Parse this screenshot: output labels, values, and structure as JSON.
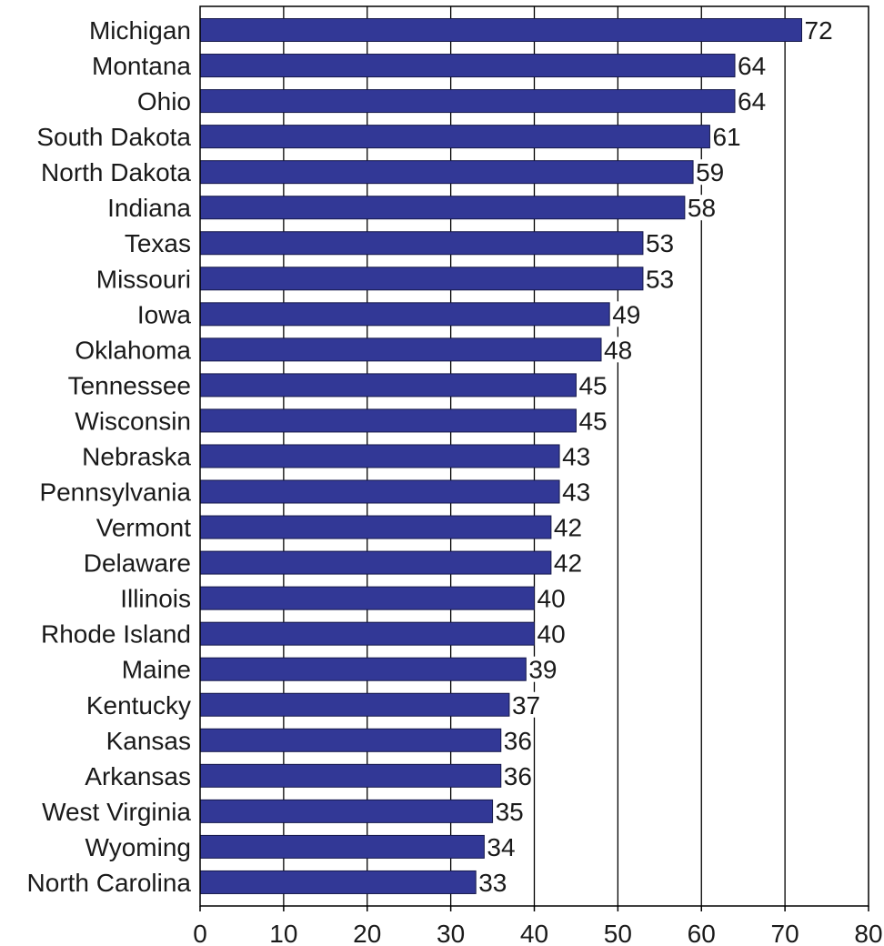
{
  "chart_data": {
    "type": "bar",
    "orientation": "horizontal",
    "categories": [
      "Michigan",
      "Montana",
      "Ohio",
      "South Dakota",
      "North Dakota",
      "Indiana",
      "Texas",
      "Missouri",
      "Iowa",
      "Oklahoma",
      "Tennessee",
      "Wisconsin",
      "Nebraska",
      "Pennsylvania",
      "Vermont",
      "Delaware",
      "Illinois",
      "Rhode Island",
      "Maine",
      "Kentucky",
      "Kansas",
      "Arkansas",
      "West Virginia",
      "Wyoming",
      "North Carolina"
    ],
    "values": [
      72,
      64,
      64,
      61,
      59,
      58,
      53,
      53,
      49,
      48,
      45,
      45,
      43,
      43,
      42,
      42,
      40,
      40,
      39,
      37,
      36,
      36,
      35,
      34,
      33
    ],
    "value_labels": [
      "72",
      "64",
      "64",
      "61",
      "59",
      "58",
      "53",
      "53",
      "49",
      "48",
      "45",
      "45",
      "43",
      "43",
      "42",
      "42",
      "40",
      "40",
      "39",
      "37",
      "36",
      "36",
      "35",
      "34",
      "33"
    ],
    "xticks": [
      0,
      10,
      20,
      30,
      40,
      50,
      60,
      70,
      80
    ],
    "xtick_labels": [
      "0",
      "10",
      "20",
      "30",
      "40",
      "50",
      "60",
      "70",
      "80"
    ],
    "xlim": [
      0,
      80
    ],
    "title": "",
    "xlabel": "",
    "ylabel": "",
    "grid": "vertical",
    "legend": "none",
    "colors": {
      "bar": "#323896",
      "bar_stroke": "#15184a",
      "grid": "#000000",
      "text": "#1a1a1a"
    }
  }
}
